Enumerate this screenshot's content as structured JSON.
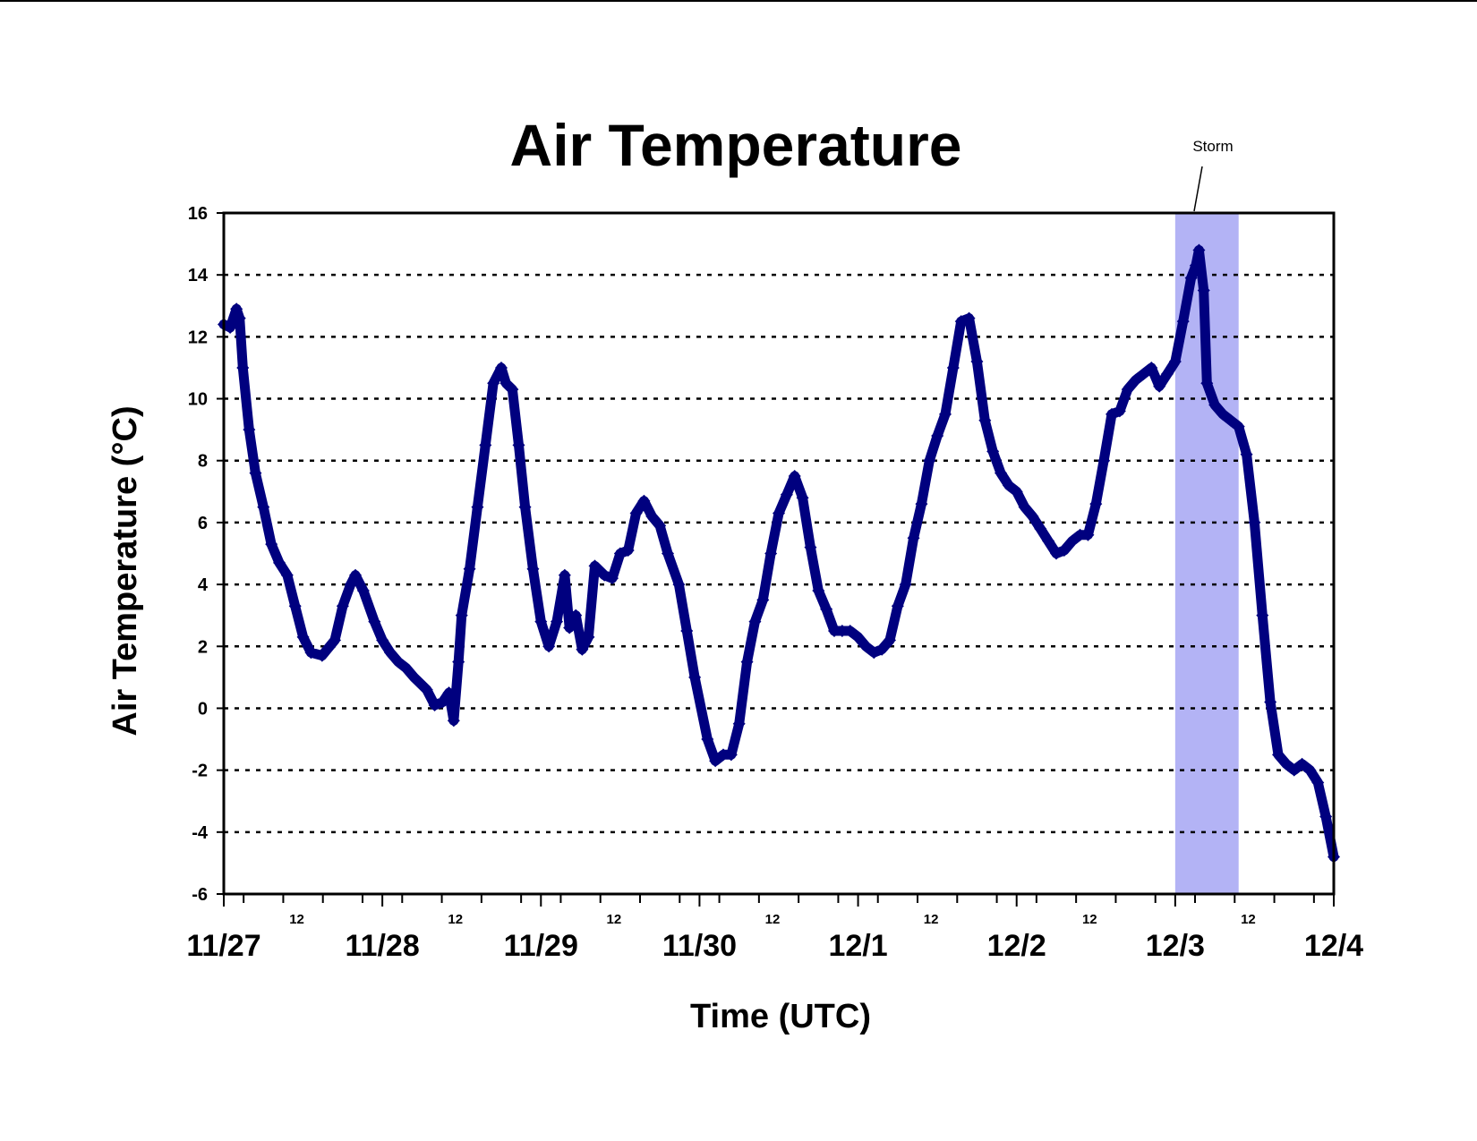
{
  "chart_data": {
    "type": "line",
    "title": "Air Temperature",
    "xlabel": "Time (UTC)",
    "ylabel": "Air Temperature (°C)",
    "x_unit": "day offset from 11/27 00 UTC",
    "xlim": [
      0,
      7
    ],
    "ylim": [
      -6,
      16
    ],
    "yticks": [
      -6,
      -4,
      -2,
      0,
      2,
      4,
      6,
      8,
      10,
      12,
      14,
      16
    ],
    "xticks": [
      {
        "x": 0,
        "label": "11/27"
      },
      {
        "x": 1,
        "label": "11/28"
      },
      {
        "x": 2,
        "label": "11/29"
      },
      {
        "x": 3,
        "label": "11/30"
      },
      {
        "x": 4,
        "label": "12/1"
      },
      {
        "x": 5,
        "label": "12/2"
      },
      {
        "x": 6,
        "label": "12/3"
      },
      {
        "x": 7,
        "label": "12/4"
      }
    ],
    "minor_ticks": [
      {
        "x": 0.5,
        "label": "12"
      },
      {
        "x": 1.5,
        "label": "12"
      },
      {
        "x": 2.5,
        "label": "12"
      },
      {
        "x": 3.5,
        "label": "12"
      },
      {
        "x": 4.5,
        "label": "12"
      },
      {
        "x": 5.5,
        "label": "12"
      },
      {
        "x": 6.5,
        "label": "12"
      }
    ],
    "grid": "horizontal dotted",
    "legend": "none",
    "shaded_region": {
      "x_start": 6.0,
      "x_end": 6.4,
      "label": "Storm",
      "color": "#b3b3f5"
    },
    "series": [
      {
        "color": "#00007f",
        "marker": "diamond",
        "points": [
          [
            0.0,
            12.4
          ],
          [
            0.04,
            12.3
          ],
          [
            0.08,
            12.9
          ],
          [
            0.1,
            12.6
          ],
          [
            0.12,
            11.0
          ],
          [
            0.16,
            9.0
          ],
          [
            0.2,
            7.6
          ],
          [
            0.25,
            6.5
          ],
          [
            0.3,
            5.3
          ],
          [
            0.35,
            4.7
          ],
          [
            0.4,
            4.3
          ],
          [
            0.45,
            3.3
          ],
          [
            0.5,
            2.3
          ],
          [
            0.55,
            1.8
          ],
          [
            0.62,
            1.7
          ],
          [
            0.7,
            2.2
          ],
          [
            0.75,
            3.3
          ],
          [
            0.8,
            4.0
          ],
          [
            0.83,
            4.3
          ],
          [
            0.88,
            3.8
          ],
          [
            0.95,
            2.8
          ],
          [
            1.0,
            2.2
          ],
          [
            1.05,
            1.8
          ],
          [
            1.1,
            1.5
          ],
          [
            1.15,
            1.3
          ],
          [
            1.2,
            1.0
          ],
          [
            1.28,
            0.6
          ],
          [
            1.33,
            0.1
          ],
          [
            1.38,
            0.2
          ],
          [
            1.42,
            0.5
          ],
          [
            1.45,
            -0.4
          ],
          [
            1.48,
            1.5
          ],
          [
            1.5,
            3.0
          ],
          [
            1.55,
            4.5
          ],
          [
            1.6,
            6.5
          ],
          [
            1.65,
            8.5
          ],
          [
            1.7,
            10.5
          ],
          [
            1.75,
            11.0
          ],
          [
            1.78,
            10.5
          ],
          [
            1.82,
            10.3
          ],
          [
            1.86,
            8.5
          ],
          [
            1.9,
            6.5
          ],
          [
            1.95,
            4.5
          ],
          [
            2.0,
            2.8
          ],
          [
            2.05,
            2.0
          ],
          [
            2.1,
            2.8
          ],
          [
            2.15,
            4.3
          ],
          [
            2.18,
            2.6
          ],
          [
            2.22,
            3.0
          ],
          [
            2.26,
            1.9
          ],
          [
            2.3,
            2.3
          ],
          [
            2.34,
            4.6
          ],
          [
            2.4,
            4.3
          ],
          [
            2.45,
            4.2
          ],
          [
            2.5,
            5.0
          ],
          [
            2.55,
            5.1
          ],
          [
            2.6,
            6.3
          ],
          [
            2.65,
            6.7
          ],
          [
            2.7,
            6.2
          ],
          [
            2.75,
            5.9
          ],
          [
            2.8,
            5.0
          ],
          [
            2.87,
            4.0
          ],
          [
            2.92,
            2.5
          ],
          [
            2.97,
            1.0
          ],
          [
            3.05,
            -1.0
          ],
          [
            3.1,
            -1.7
          ],
          [
            3.15,
            -1.5
          ],
          [
            3.2,
            -1.5
          ],
          [
            3.25,
            -0.5
          ],
          [
            3.3,
            1.5
          ],
          [
            3.35,
            2.8
          ],
          [
            3.4,
            3.5
          ],
          [
            3.45,
            5.0
          ],
          [
            3.5,
            6.3
          ],
          [
            3.55,
            6.9
          ],
          [
            3.6,
            7.5
          ],
          [
            3.65,
            6.8
          ],
          [
            3.7,
            5.2
          ],
          [
            3.75,
            3.8
          ],
          [
            3.8,
            3.2
          ],
          [
            3.85,
            2.5
          ],
          [
            3.9,
            2.5
          ],
          [
            3.95,
            2.5
          ],
          [
            4.0,
            2.3
          ],
          [
            4.05,
            2.0
          ],
          [
            4.1,
            1.8
          ],
          [
            4.15,
            1.9
          ],
          [
            4.2,
            2.2
          ],
          [
            4.25,
            3.3
          ],
          [
            4.3,
            4.0
          ],
          [
            4.35,
            5.5
          ],
          [
            4.4,
            6.6
          ],
          [
            4.45,
            8.0
          ],
          [
            4.5,
            8.8
          ],
          [
            4.55,
            9.5
          ],
          [
            4.6,
            11.0
          ],
          [
            4.65,
            12.5
          ],
          [
            4.7,
            12.6
          ],
          [
            4.75,
            11.2
          ],
          [
            4.8,
            9.3
          ],
          [
            4.85,
            8.3
          ],
          [
            4.9,
            7.6
          ],
          [
            4.95,
            7.2
          ],
          [
            5.0,
            7.0
          ],
          [
            5.05,
            6.5
          ],
          [
            5.1,
            6.2
          ],
          [
            5.15,
            5.8
          ],
          [
            5.2,
            5.4
          ],
          [
            5.25,
            5.0
          ],
          [
            5.3,
            5.1
          ],
          [
            5.35,
            5.4
          ],
          [
            5.4,
            5.6
          ],
          [
            5.45,
            5.6
          ],
          [
            5.5,
            6.6
          ],
          [
            5.55,
            8.0
          ],
          [
            5.6,
            9.5
          ],
          [
            5.65,
            9.6
          ],
          [
            5.7,
            10.3
          ],
          [
            5.75,
            10.6
          ],
          [
            5.8,
            10.8
          ],
          [
            5.85,
            11.0
          ],
          [
            5.9,
            10.4
          ],
          [
            5.95,
            10.8
          ],
          [
            6.0,
            11.2
          ],
          [
            6.05,
            12.5
          ],
          [
            6.1,
            13.9
          ],
          [
            6.13,
            14.3
          ],
          [
            6.15,
            14.8
          ],
          [
            6.18,
            13.5
          ],
          [
            6.2,
            10.5
          ],
          [
            6.25,
            9.8
          ],
          [
            6.3,
            9.5
          ],
          [
            6.35,
            9.3
          ],
          [
            6.4,
            9.1
          ],
          [
            6.45,
            8.2
          ],
          [
            6.5,
            6.0
          ],
          [
            6.55,
            3.0
          ],
          [
            6.6,
            0.2
          ],
          [
            6.65,
            -1.5
          ],
          [
            6.7,
            -1.8
          ],
          [
            6.75,
            -2.0
          ],
          [
            6.8,
            -1.8
          ],
          [
            6.85,
            -2.0
          ],
          [
            6.9,
            -2.4
          ],
          [
            6.95,
            -3.5
          ],
          [
            7.0,
            -4.8
          ]
        ]
      }
    ]
  }
}
